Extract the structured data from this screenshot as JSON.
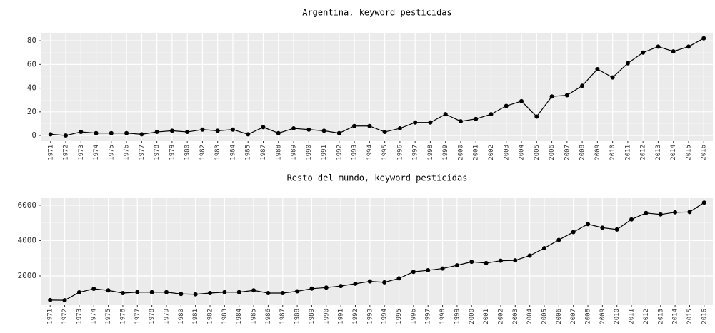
{
  "chart_data": [
    {
      "type": "line",
      "title": "Argentina, keyword pesticidas",
      "categories": [
        "1971",
        "1972",
        "1973",
        "1974",
        "1975",
        "1976",
        "1977",
        "1978",
        "1979",
        "1980",
        "1982",
        "1983",
        "1984",
        "1985",
        "1987",
        "1988",
        "1989",
        "1990",
        "1991",
        "1992",
        "1993",
        "1994",
        "1995",
        "1996",
        "1997",
        "1998",
        "1999",
        "2000",
        "2001",
        "2002",
        "2003",
        "2004",
        "2005",
        "2006",
        "2007",
        "2008",
        "2009",
        "2010",
        "2011",
        "2012",
        "2013",
        "2014",
        "2015",
        "2016"
      ],
      "values": [
        1,
        0,
        3,
        2,
        2,
        2,
        1,
        3,
        4,
        3,
        5,
        4,
        5,
        1,
        7,
        2,
        6,
        5,
        4,
        2,
        8,
        8,
        3,
        6,
        11,
        11,
        18,
        12,
        14,
        18,
        25,
        29,
        16,
        33,
        34,
        42,
        56,
        49,
        61,
        70,
        75,
        71,
        75,
        82
      ],
      "color": "#000000",
      "ylim": [
        -4.8,
        86.7
      ],
      "yticks": [
        0,
        20,
        40,
        60,
        80
      ],
      "grid": true
    },
    {
      "type": "line",
      "title": "Resto del mundo, keyword pesticidas",
      "categories": [
        "1971",
        "1972",
        "1973",
        "1974",
        "1975",
        "1976",
        "1977",
        "1978",
        "1979",
        "1980",
        "1981",
        "1982",
        "1983",
        "1984",
        "1985",
        "1986",
        "1987",
        "1988",
        "1989",
        "1990",
        "1991",
        "1992",
        "1993",
        "1994",
        "1995",
        "1996",
        "1997",
        "1998",
        "1999",
        "2000",
        "2001",
        "2002",
        "2003",
        "2004",
        "2005",
        "2006",
        "2007",
        "2008",
        "2009",
        "2010",
        "2011",
        "2012",
        "2013",
        "2014",
        "2015",
        "2016"
      ],
      "values": [
        630,
        620,
        1070,
        1270,
        1180,
        1030,
        1080,
        1080,
        1080,
        980,
        960,
        1030,
        1080,
        1080,
        1180,
        1030,
        1030,
        1130,
        1280,
        1340,
        1430,
        1560,
        1690,
        1640,
        1860,
        2230,
        2320,
        2420,
        2600,
        2800,
        2730,
        2860,
        2880,
        3150,
        3570,
        4040,
        4480,
        4930,
        4730,
        4630,
        5200,
        5560,
        5480,
        5600,
        5620,
        6150
      ],
      "color": "#000000",
      "ylim": [
        343,
        6400
      ],
      "yticks": [
        2000,
        4000,
        6000
      ],
      "grid": true
    }
  ]
}
